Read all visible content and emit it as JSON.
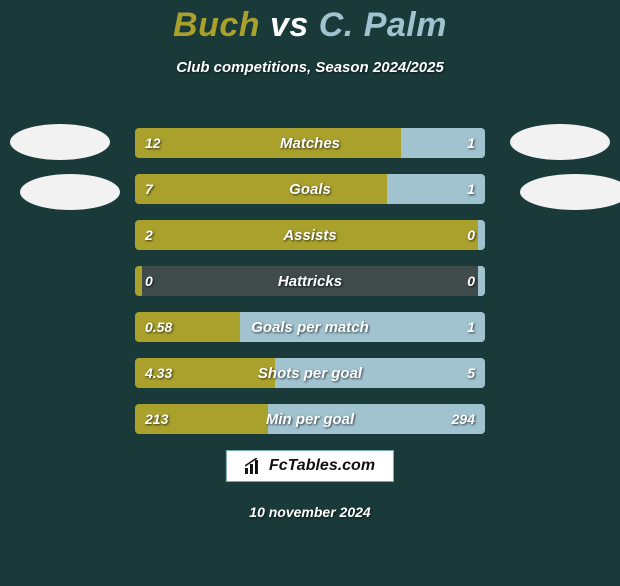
{
  "background_color": "#1a3a3a",
  "title": {
    "player1": "Buch",
    "vs": "vs",
    "player2": "C. Palm",
    "fontsize": 34,
    "color_p1": "#a9a12c",
    "color_vs": "#ffffff",
    "color_p2": "#a1c3d0"
  },
  "subtitle": {
    "text": "Club competitions, Season 2024/2025",
    "fontsize": 15,
    "color": "#ffffff"
  },
  "bar_style": {
    "height": 30,
    "gap": 16,
    "track_color": "#404c4c",
    "left_color": "#a9a12c",
    "right_color": "#a1c3d0",
    "label_fontsize": 15,
    "value_fontsize": 14,
    "text_color": "#ffffff",
    "border_radius": 4
  },
  "stats": [
    {
      "label": "Matches",
      "left_val": "12",
      "right_val": "1",
      "left_pct": 76,
      "right_pct": 24
    },
    {
      "label": "Goals",
      "left_val": "7",
      "right_val": "1",
      "left_pct": 72,
      "right_pct": 28
    },
    {
      "label": "Assists",
      "left_val": "2",
      "right_val": "0",
      "left_pct": 98,
      "right_pct": 2
    },
    {
      "label": "Hattricks",
      "left_val": "0",
      "right_val": "0",
      "left_pct": 2,
      "right_pct": 2
    },
    {
      "label": "Goals per match",
      "left_val": "0.58",
      "right_val": "1",
      "left_pct": 30,
      "right_pct": 70
    },
    {
      "label": "Shots per goal",
      "left_val": "4.33",
      "right_val": "5",
      "left_pct": 40,
      "right_pct": 60
    },
    {
      "label": "Min per goal",
      "left_val": "213",
      "right_val": "294",
      "left_pct": 38,
      "right_pct": 62
    }
  ],
  "photos": {
    "shape": "ellipse",
    "fill": "#f2f2f2"
  },
  "footer": {
    "brand": "FcTables.com",
    "date": "10 november 2024",
    "badge_bg": "#ffffff",
    "badge_border": "#7aa",
    "brand_fontsize": 16,
    "date_fontsize": 14
  }
}
